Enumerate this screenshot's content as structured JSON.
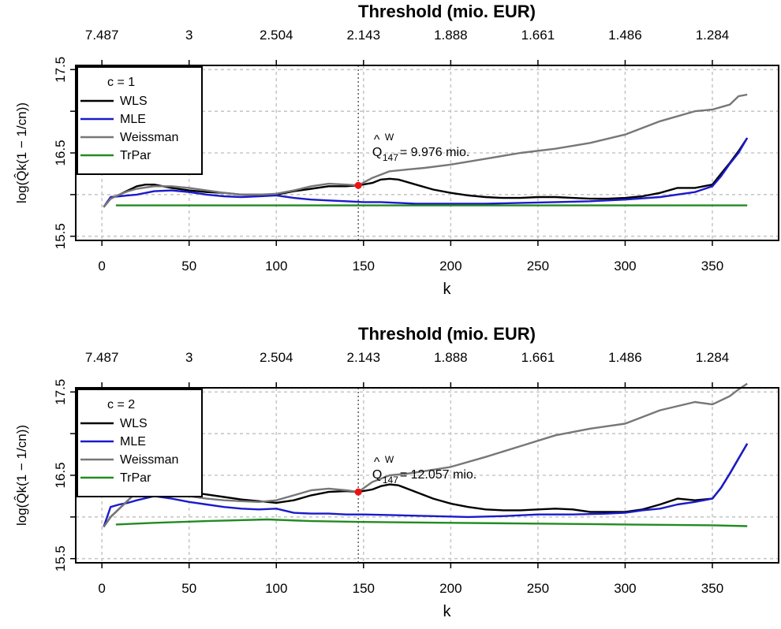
{
  "chart_data": [
    {
      "type": "line",
      "top_axis_title": "Threshold (mio. EUR)",
      "top_ticks": [
        {
          "k": 0,
          "label": "7.487"
        },
        {
          "k": 50,
          "label": "3"
        },
        {
          "k": 100,
          "label": "2.504"
        },
        {
          "k": 150,
          "label": "2.143"
        },
        {
          "k": 200,
          "label": "1.888"
        },
        {
          "k": 250,
          "label": "1.661"
        },
        {
          "k": 300,
          "label": "1.486"
        },
        {
          "k": 350,
          "label": "1.284"
        }
      ],
      "xlabel": "k",
      "ylabel": "log(Q̂k(1 − 1/cn))",
      "x_ticks": [
        0,
        50,
        100,
        150,
        200,
        250,
        300,
        350
      ],
      "y_ticks": [
        "15.5",
        "16.5",
        "17.5"
      ],
      "ylim": [
        15.45,
        17.55
      ],
      "xlim": [
        -15,
        388
      ],
      "grid": true,
      "legend_position": "top-left",
      "legend_title": "c =  1",
      "vline_k": 147,
      "highlight": {
        "k": 147,
        "y": 16.11,
        "color": "#ee1111"
      },
      "annotation": {
        "symbol": "Q",
        "superscript": "W",
        "subscript": "147",
        "text": "= 9.976 mio.",
        "k": 155,
        "y": 16.5
      },
      "series": [
        {
          "name": "WLS",
          "color": "#000000",
          "x": [
            1,
            5,
            10,
            15,
            20,
            25,
            30,
            35,
            40,
            50,
            60,
            70,
            80,
            90,
            100,
            110,
            120,
            130,
            140,
            147,
            155,
            160,
            165,
            170,
            180,
            190,
            200,
            210,
            220,
            230,
            240,
            250,
            260,
            270,
            280,
            290,
            300,
            310,
            320,
            330,
            340,
            350,
            355,
            360,
            365,
            370
          ],
          "y": [
            15.85,
            15.95,
            16.0,
            16.05,
            16.1,
            16.12,
            16.12,
            16.1,
            16.08,
            16.05,
            16.03,
            16.02,
            16.0,
            16.0,
            16.0,
            16.04,
            16.07,
            16.1,
            16.1,
            16.11,
            16.14,
            16.18,
            16.19,
            16.18,
            16.12,
            16.06,
            16.02,
            15.99,
            15.97,
            15.96,
            15.96,
            15.97,
            15.97,
            15.96,
            15.95,
            15.95,
            15.96,
            15.98,
            16.02,
            16.08,
            16.08,
            16.12,
            16.25,
            16.38,
            16.52,
            16.68
          ]
        },
        {
          "name": "MLE",
          "color": "#1a1acc",
          "x": [
            1,
            5,
            10,
            15,
            20,
            30,
            40,
            50,
            60,
            70,
            80,
            90,
            100,
            110,
            120,
            130,
            140,
            150,
            160,
            170,
            180,
            200,
            220,
            240,
            260,
            280,
            300,
            320,
            340,
            350,
            355,
            360,
            365,
            370
          ],
          "y": [
            15.85,
            15.97,
            15.98,
            15.99,
            16.0,
            16.04,
            16.05,
            16.03,
            16.0,
            15.98,
            15.97,
            15.98,
            15.99,
            15.96,
            15.94,
            15.93,
            15.92,
            15.91,
            15.91,
            15.9,
            15.89,
            15.89,
            15.89,
            15.9,
            15.91,
            15.92,
            15.94,
            15.97,
            16.03,
            16.1,
            16.22,
            16.37,
            16.5,
            16.68
          ]
        },
        {
          "name": "Weissman",
          "color": "#777777",
          "x": [
            1,
            5,
            10,
            15,
            20,
            30,
            40,
            50,
            60,
            70,
            80,
            90,
            100,
            110,
            120,
            130,
            140,
            147,
            155,
            165,
            175,
            185,
            200,
            220,
            240,
            260,
            280,
            300,
            320,
            340,
            350,
            360,
            365,
            370
          ],
          "y": [
            15.85,
            15.95,
            16.0,
            16.04,
            16.07,
            16.1,
            16.1,
            16.08,
            16.05,
            16.02,
            16.0,
            16.0,
            16.01,
            16.05,
            16.1,
            16.13,
            16.12,
            16.11,
            16.2,
            16.28,
            16.3,
            16.32,
            16.36,
            16.43,
            16.5,
            16.55,
            16.62,
            16.72,
            16.88,
            17.0,
            17.02,
            17.08,
            17.18,
            17.2
          ]
        },
        {
          "name": "TrPar",
          "color": "#228b22",
          "x": [
            8,
            50,
            100,
            150,
            200,
            250,
            300,
            350,
            370
          ],
          "y": [
            15.87,
            15.87,
            15.87,
            15.87,
            15.87,
            15.87,
            15.87,
            15.87,
            15.87
          ]
        }
      ]
    },
    {
      "type": "line",
      "top_axis_title": "Threshold (mio. EUR)",
      "top_ticks": [
        {
          "k": 0,
          "label": "7.487"
        },
        {
          "k": 50,
          "label": "3"
        },
        {
          "k": 100,
          "label": "2.504"
        },
        {
          "k": 150,
          "label": "2.143"
        },
        {
          "k": 200,
          "label": "1.888"
        },
        {
          "k": 250,
          "label": "1.661"
        },
        {
          "k": 300,
          "label": "1.486"
        },
        {
          "k": 350,
          "label": "1.284"
        }
      ],
      "xlabel": "k",
      "ylabel": "log(Q̂k(1 − 1/cn))",
      "x_ticks": [
        0,
        50,
        100,
        150,
        200,
        250,
        300,
        350
      ],
      "y_ticks": [
        "15.5",
        "16.5",
        "17.5"
      ],
      "ylim": [
        15.45,
        17.55
      ],
      "xlim": [
        -15,
        388
      ],
      "grid": true,
      "legend_position": "top-left",
      "legend_title": "c =  2",
      "vline_k": 147,
      "highlight": {
        "k": 147,
        "y": 16.3,
        "color": "#ee1111"
      },
      "annotation": {
        "symbol": "Q",
        "superscript": "W",
        "subscript": "147",
        "text": "= 12.057 mio.",
        "k": 155,
        "y": 16.5
      },
      "series": [
        {
          "name": "WLS",
          "color": "#000000",
          "x": [
            1,
            5,
            10,
            15,
            20,
            30,
            40,
            50,
            60,
            70,
            80,
            90,
            100,
            110,
            120,
            130,
            140,
            147,
            155,
            160,
            165,
            170,
            180,
            190,
            200,
            210,
            220,
            230,
            240,
            250,
            260,
            270,
            280,
            290,
            300,
            310,
            320,
            330,
            340,
            350,
            355,
            360,
            365,
            370
          ],
          "y": [
            15.88,
            16.0,
            16.1,
            16.2,
            16.3,
            16.35,
            16.33,
            16.3,
            16.27,
            16.24,
            16.21,
            16.19,
            16.17,
            16.2,
            16.26,
            16.3,
            16.31,
            16.3,
            16.33,
            16.37,
            16.39,
            16.38,
            16.3,
            16.22,
            16.16,
            16.12,
            16.09,
            16.08,
            16.08,
            16.09,
            16.1,
            16.09,
            16.06,
            16.06,
            16.06,
            16.09,
            16.15,
            16.22,
            16.2,
            16.22,
            16.35,
            16.52,
            16.7,
            16.88
          ]
        },
        {
          "name": "MLE",
          "color": "#1a1acc",
          "x": [
            1,
            5,
            10,
            15,
            20,
            30,
            40,
            50,
            60,
            70,
            80,
            90,
            100,
            110,
            120,
            130,
            140,
            150,
            170,
            190,
            210,
            230,
            250,
            270,
            290,
            300,
            310,
            320,
            330,
            340,
            350,
            355,
            360,
            365,
            370
          ],
          "y": [
            15.88,
            16.12,
            16.15,
            16.17,
            16.2,
            16.25,
            16.22,
            16.18,
            16.15,
            16.12,
            16.1,
            16.09,
            16.1,
            16.05,
            16.04,
            16.04,
            16.03,
            16.03,
            16.02,
            16.01,
            16.0,
            16.01,
            16.03,
            16.03,
            16.04,
            16.05,
            16.08,
            16.1,
            16.15,
            16.18,
            16.22,
            16.35,
            16.52,
            16.7,
            16.88
          ]
        },
        {
          "name": "Weissman",
          "color": "#777777",
          "x": [
            1,
            5,
            10,
            15,
            20,
            30,
            40,
            50,
            60,
            70,
            80,
            90,
            100,
            110,
            120,
            130,
            140,
            147,
            155,
            165,
            175,
            185,
            200,
            220,
            240,
            260,
            280,
            300,
            320,
            340,
            350,
            360,
            365,
            370
          ],
          "y": [
            15.88,
            16.0,
            16.1,
            16.2,
            16.3,
            16.3,
            16.28,
            16.25,
            16.22,
            16.2,
            16.19,
            16.18,
            16.2,
            16.26,
            16.32,
            16.34,
            16.32,
            16.3,
            16.42,
            16.5,
            16.52,
            16.55,
            16.6,
            16.72,
            16.85,
            16.98,
            17.06,
            17.12,
            17.28,
            17.38,
            17.35,
            17.45,
            17.53,
            17.6
          ]
        },
        {
          "name": "TrPar",
          "color": "#228b22",
          "x": [
            8,
            30,
            60,
            95,
            120,
            150,
            200,
            250,
            300,
            350,
            370
          ],
          "y": [
            15.91,
            15.93,
            15.95,
            15.97,
            15.95,
            15.94,
            15.93,
            15.92,
            15.91,
            15.9,
            15.89
          ]
        }
      ]
    }
  ]
}
